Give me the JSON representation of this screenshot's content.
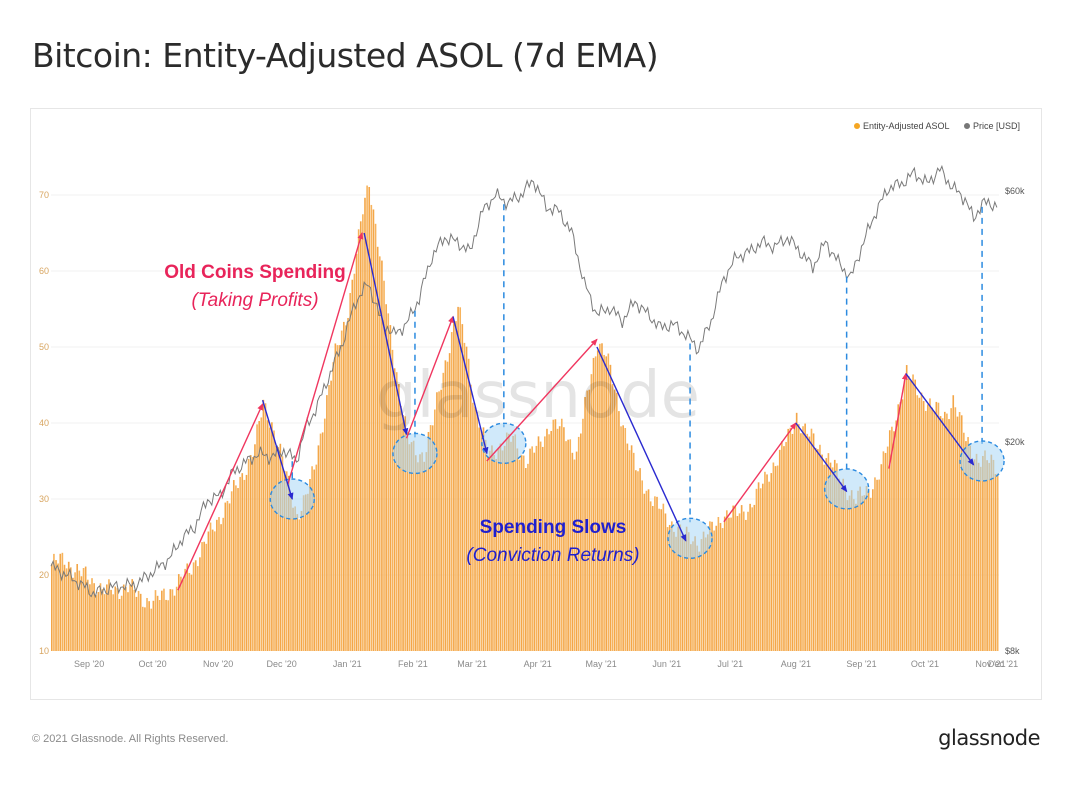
{
  "chart_data": {
    "type": "bar",
    "title": "Bitcoin: Entity-Adjusted ASOL (7d EMA)",
    "x_ticks": [
      "Sep '20",
      "Oct '20",
      "Nov '20",
      "Dec '20",
      "Jan '21",
      "Feb '21",
      "Mar '21",
      "Apr '21",
      "May '21",
      "Jun '21",
      "Jul '21",
      "Aug '21",
      "Sep '21",
      "Oct '21",
      "Nov '21",
      "Dec '21"
    ],
    "y_left_ticks": [
      "10",
      "20",
      "30",
      "40",
      "50",
      "60",
      "70"
    ],
    "y_left_range": [
      10,
      75
    ],
    "y_right_ticks": [
      "$8k",
      "$20k",
      "$60k"
    ],
    "y_right_scale": "log",
    "legend": [
      {
        "label": "Entity-Adjusted ASOL",
        "color": "#f5a623"
      },
      {
        "label": "Price [USD]",
        "color": "#777777"
      }
    ],
    "series": [
      {
        "name": "Entity-Adjusted ASOL",
        "kind": "bar",
        "color": "#f5a94a",
        "anchors": [
          [
            0,
            21.5
          ],
          [
            6,
            22.0
          ],
          [
            12,
            20.5
          ],
          [
            18,
            19.5
          ],
          [
            24,
            18.0
          ],
          [
            30,
            18.0
          ],
          [
            36,
            18.5
          ],
          [
            42,
            17.0
          ],
          [
            48,
            16.5
          ],
          [
            54,
            17.5
          ],
          [
            60,
            19.0
          ],
          [
            66,
            21.0
          ],
          [
            72,
            24.0
          ],
          [
            78,
            27.0
          ],
          [
            84,
            30.0
          ],
          [
            90,
            33.0
          ],
          [
            96,
            37.0
          ],
          [
            100,
            42.5
          ],
          [
            104,
            40.0
          ],
          [
            108,
            36.0
          ],
          [
            112,
            32.0
          ],
          [
            116,
            28.0
          ],
          [
            120,
            30.0
          ],
          [
            124,
            34.0
          ],
          [
            128,
            40.0
          ],
          [
            134,
            49.0
          ],
          [
            140,
            55.0
          ],
          [
            144,
            62.0
          ],
          [
            147,
            68.0
          ],
          [
            150,
            72.0
          ],
          [
            154,
            64.0
          ],
          [
            160,
            52.0
          ],
          [
            164,
            45.0
          ],
          [
            168,
            38.0
          ],
          [
            172,
            36.0
          ],
          [
            176,
            36.0
          ],
          [
            180,
            40.0
          ],
          [
            186,
            48.0
          ],
          [
            192,
            55.0
          ],
          [
            196,
            50.0
          ],
          [
            200,
            42.0
          ],
          [
            206,
            36.0
          ],
          [
            212,
            37.0
          ],
          [
            218,
            38.0
          ],
          [
            224,
            35.0
          ],
          [
            230,
            37.0
          ],
          [
            236,
            40.0
          ],
          [
            242,
            39.0
          ],
          [
            248,
            36.0
          ],
          [
            254,
            45.0
          ],
          [
            258,
            51.0
          ],
          [
            262,
            49.0
          ],
          [
            268,
            42.0
          ],
          [
            276,
            34.0
          ],
          [
            284,
            30.0
          ],
          [
            292,
            27.0
          ],
          [
            300,
            25.0
          ],
          [
            306,
            24.5
          ],
          [
            312,
            26.0
          ],
          [
            318,
            28.0
          ],
          [
            324,
            28.0
          ],
          [
            330,
            29.0
          ],
          [
            336,
            32.0
          ],
          [
            342,
            35.0
          ],
          [
            348,
            38.0
          ],
          [
            352,
            41.0
          ],
          [
            356,
            39.0
          ],
          [
            362,
            37.0
          ],
          [
            368,
            35.0
          ],
          [
            374,
            32.0
          ],
          [
            380,
            30.0
          ],
          [
            386,
            31.0
          ],
          [
            392,
            34.0
          ],
          [
            398,
            40.0
          ],
          [
            404,
            46.5
          ],
          [
            410,
            44.0
          ],
          [
            416,
            42.0
          ],
          [
            422,
            41.0
          ],
          [
            426,
            43.0
          ],
          [
            432,
            38.0
          ],
          [
            438,
            35.0
          ],
          [
            444,
            35.0
          ],
          [
            448,
            34.0
          ]
        ]
      },
      {
        "name": "Price [USD]",
        "kind": "line",
        "color": "#777777",
        "anchors": [
          [
            0,
            11600
          ],
          [
            10,
            11000
          ],
          [
            20,
            10300
          ],
          [
            30,
            10600
          ],
          [
            40,
            10700
          ],
          [
            48,
            11300
          ],
          [
            56,
            12000
          ],
          [
            62,
            13100
          ],
          [
            68,
            13800
          ],
          [
            74,
            15500
          ],
          [
            80,
            15800
          ],
          [
            86,
            17500
          ],
          [
            92,
            18300
          ],
          [
            98,
            19000
          ],
          [
            104,
            18700
          ],
          [
            110,
            19300
          ],
          [
            116,
            18400
          ],
          [
            120,
            21000
          ],
          [
            126,
            23500
          ],
          [
            132,
            27000
          ],
          [
            138,
            31000
          ],
          [
            144,
            37000
          ],
          [
            150,
            40000
          ],
          [
            156,
            34000
          ],
          [
            162,
            32000
          ],
          [
            168,
            33500
          ],
          [
            174,
            37500
          ],
          [
            180,
            45000
          ],
          [
            186,
            49000
          ],
          [
            192,
            48000
          ],
          [
            198,
            46000
          ],
          [
            204,
            55000
          ],
          [
            210,
            59000
          ],
          [
            216,
            57000
          ],
          [
            222,
            59000
          ],
          [
            228,
            63000
          ],
          [
            234,
            56000
          ],
          [
            240,
            55000
          ],
          [
            246,
            50000
          ],
          [
            252,
            40000
          ],
          [
            258,
            35000
          ],
          [
            264,
            36000
          ],
          [
            270,
            34000
          ],
          [
            276,
            37000
          ],
          [
            282,
            35000
          ],
          [
            288,
            33000
          ],
          [
            294,
            33500
          ],
          [
            300,
            32000
          ],
          [
            306,
            30000
          ],
          [
            312,
            34000
          ],
          [
            318,
            41000
          ],
          [
            324,
            45000
          ],
          [
            330,
            46000
          ],
          [
            336,
            48000
          ],
          [
            342,
            47000
          ],
          [
            348,
            49000
          ],
          [
            354,
            46000
          ],
          [
            360,
            43000
          ],
          [
            366,
            48000
          ],
          [
            372,
            44000
          ],
          [
            378,
            41000
          ],
          [
            384,
            48000
          ],
          [
            390,
            55000
          ],
          [
            396,
            61000
          ],
          [
            402,
            62000
          ],
          [
            408,
            65000
          ],
          [
            414,
            62000
          ],
          [
            420,
            66000
          ],
          [
            426,
            61000
          ],
          [
            432,
            58000
          ],
          [
            436,
            53000
          ],
          [
            440,
            57000
          ],
          [
            448,
            56500
          ]
        ]
      }
    ],
    "annotations": [
      {
        "text": "Old Coins Spending",
        "style": "bold",
        "color": "#e8245a"
      },
      {
        "text": "(Taking Profits)",
        "style": "italic",
        "color": "#e8245a"
      },
      {
        "text": "Spending Slows",
        "style": "bold",
        "color": "#1f1fcf"
      },
      {
        "text": "(Conviction Returns)",
        "style": "italic",
        "color": "#1f1fcf"
      }
    ],
    "profit_taking_arrows": [
      [
        60,
        18
      ],
      [
        100,
        42.5
      ],
      [
        112,
        32
      ],
      [
        147,
        65
      ],
      [
        168,
        38
      ],
      [
        190,
        54
      ],
      [
        206,
        35
      ],
      [
        258,
        51
      ],
      [
        318,
        27
      ],
      [
        352,
        40
      ],
      [
        396,
        34
      ],
      [
        404,
        46.5
      ]
    ],
    "slowdown_arrows": [
      [
        100,
        43
      ],
      [
        114,
        30
      ],
      [
        148,
        65
      ],
      [
        168,
        38.5
      ],
      [
        190,
        54
      ],
      [
        206,
        36
      ],
      [
        258,
        50
      ],
      [
        300,
        24.5
      ],
      [
        352,
        40
      ],
      [
        376,
        31
      ],
      [
        404,
        46.5
      ],
      [
        436,
        34.5
      ]
    ],
    "cluster_days": [
      114,
      172,
      214,
      302,
      376,
      440
    ]
  },
  "watermark": "glassnode",
  "footer": {
    "copyright": "© 2021 Glassnode. All Rights Reserved.",
    "brand": "glassnode"
  }
}
